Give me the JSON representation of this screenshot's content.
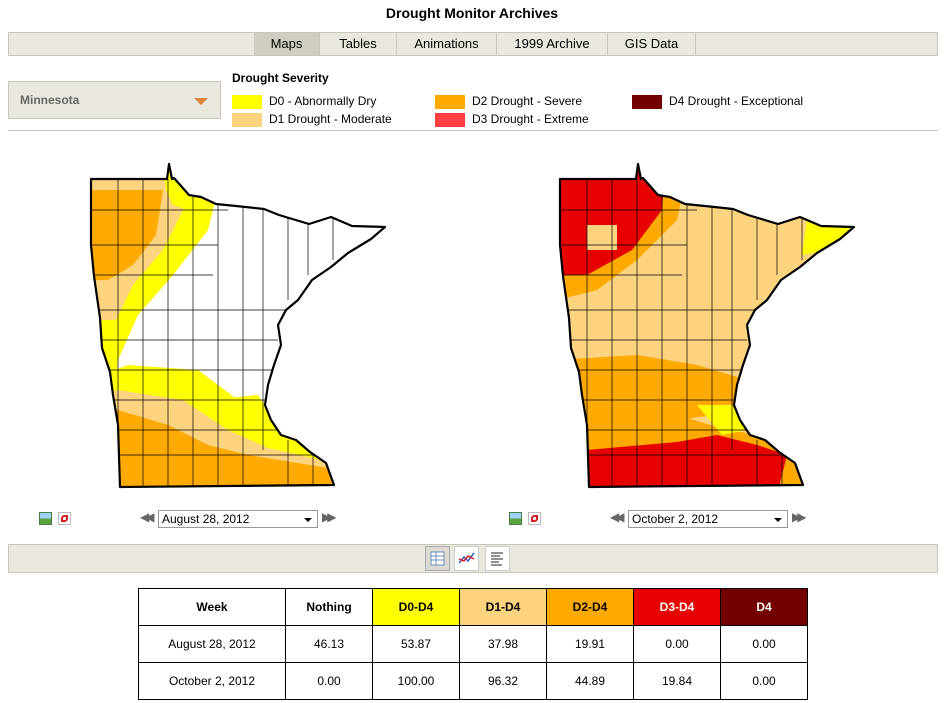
{
  "page": {
    "title": "Drought Monitor Archives"
  },
  "tabs": [
    {
      "label": "Maps",
      "active": true
    },
    {
      "label": "Tables",
      "active": false
    },
    {
      "label": "Animations",
      "active": false
    },
    {
      "label": "1999 Archive",
      "active": false
    },
    {
      "label": "GIS Data",
      "active": false
    }
  ],
  "state_select": {
    "value": "Minnesota"
  },
  "legend": {
    "title": "Drought Severity",
    "items": [
      {
        "label": "D0 - Abnormally Dry",
        "color": "#ffff00"
      },
      {
        "label": "D1 Drought - Moderate",
        "color": "#fcd37f"
      },
      {
        "label": "D2 Drought - Severe",
        "color": "#ffaa00"
      },
      {
        "label": "D3 Drought - Extreme",
        "color": "#e60000"
      },
      {
        "label": "D4 Drought - Exceptional",
        "color": "#730000"
      }
    ]
  },
  "maps": {
    "left": {
      "date": "August 28, 2012"
    },
    "right": {
      "date": "October 2, 2012"
    }
  },
  "table": {
    "headers": [
      "Week",
      "Nothing",
      "D0-D4",
      "D1-D4",
      "D2-D4",
      "D3-D4",
      "D4"
    ],
    "header_colors": [
      "#ffffff",
      "#ffffff",
      "#ffff00",
      "#fcd37f",
      "#ffaa00",
      "#e60000",
      "#730000"
    ],
    "rows": [
      [
        "August 28, 2012",
        "46.13",
        "53.87",
        "37.98",
        "19.91",
        "0.00",
        "0.00"
      ],
      [
        "October 2, 2012",
        "0.00",
        "100.00",
        "96.32",
        "44.89",
        "19.84",
        "0.00"
      ]
    ]
  }
}
